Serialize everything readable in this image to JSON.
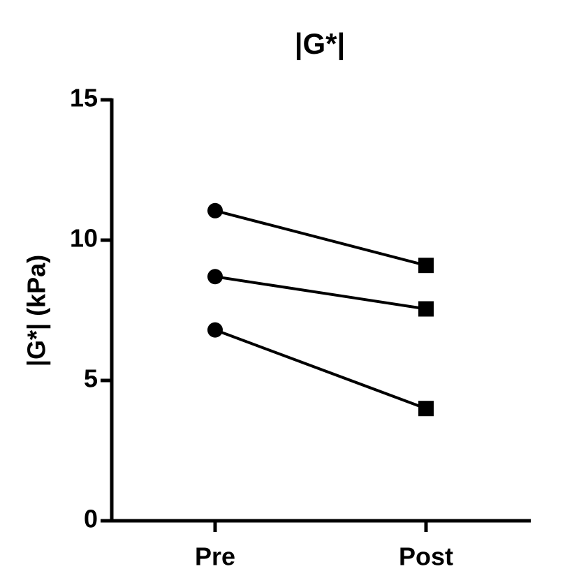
{
  "chart_data": {
    "type": "line",
    "title": "|G*|",
    "y_label": "|G*| (kPa)",
    "categories": [
      "Pre",
      "Post"
    ],
    "markers": [
      "circle",
      "square"
    ],
    "color": "#000000",
    "series": [
      {
        "values": [
          11.05,
          9.1
        ]
      },
      {
        "values": [
          8.7,
          7.55
        ]
      },
      {
        "values": [
          6.8,
          4.0
        ]
      }
    ],
    "ylim": [
      0,
      15
    ],
    "yticks": [
      0,
      5,
      10,
      15
    ]
  }
}
